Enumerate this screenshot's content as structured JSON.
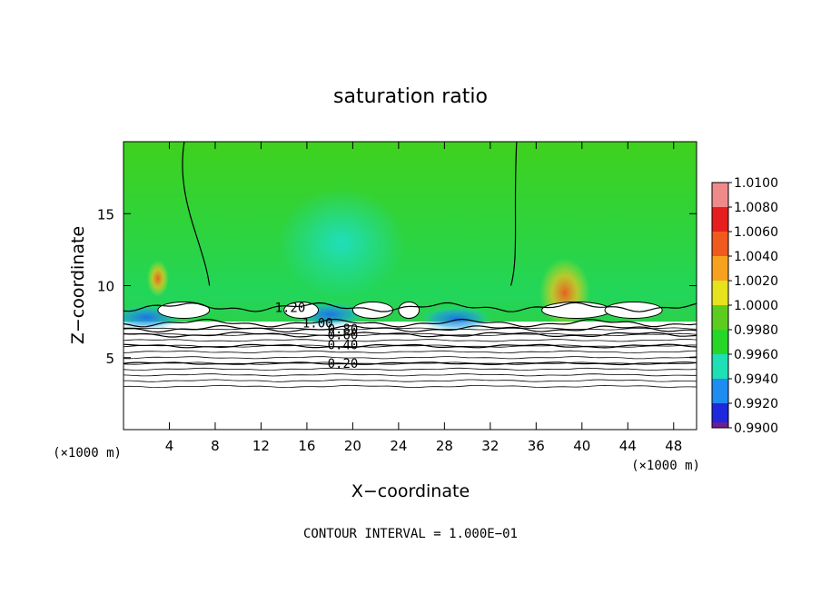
{
  "chart_data": {
    "type": "heatmap",
    "title": "saturation ratio",
    "xlabel": "X−coordinate",
    "ylabel": "Z−coordinate",
    "x_unit": "(×1000 m)",
    "y_unit": "(×1000 m)",
    "xlim": [
      0,
      50
    ],
    "ylim": [
      0,
      20
    ],
    "x_ticks": [
      4,
      8,
      12,
      16,
      20,
      24,
      28,
      32,
      36,
      40,
      44,
      48
    ],
    "y_ticks": [
      5,
      10,
      15
    ],
    "footer": "CONTOUR INTERVAL = 1.000E−01",
    "colorbar": {
      "labels": [
        "1.0100",
        "1.0080",
        "1.0060",
        "1.0040",
        "1.0020",
        "1.0000",
        "0.9980",
        "0.9960",
        "0.9940",
        "0.9920",
        "0.9900"
      ],
      "colors": [
        "#f08a8a",
        "#e61e1e",
        "#f05a1e",
        "#f7a21e",
        "#e6e21e",
        "#5ccd1e",
        "#28d628",
        "#1ee0b4",
        "#1e8cf0",
        "#1e28dc",
        "#1e1e96"
      ],
      "min": 0.99,
      "max": 1.01,
      "bottom_color": "#6a1e96"
    },
    "contours": [
      {
        "label": "0.20",
        "z": 4.6
      },
      {
        "label": "0.40",
        "z": 5.8
      },
      {
        "label": "0.60",
        "z": 6.6
      },
      {
        "label": "0.80",
        "z": 7.0
      },
      {
        "label": "1.00",
        "z": 7.4
      },
      {
        "label": "1.20",
        "z": 8.5
      }
    ],
    "field": {
      "background_value": 1.0,
      "saturated_layer_z": [
        7.5,
        20
      ],
      "features": [
        {
          "x": 18,
          "z": 8.0,
          "value": 0.9935
        },
        {
          "x": 29,
          "z": 7.7,
          "value": 0.9935
        },
        {
          "x": 2,
          "z": 7.8,
          "value": 0.9935
        },
        {
          "x": 19,
          "z": 13,
          "value": 0.9968
        },
        {
          "x": 38.5,
          "z": 9.5,
          "value": 1.006
        },
        {
          "x": 3,
          "z": 10.5,
          "value": 1.003
        }
      ]
    }
  }
}
